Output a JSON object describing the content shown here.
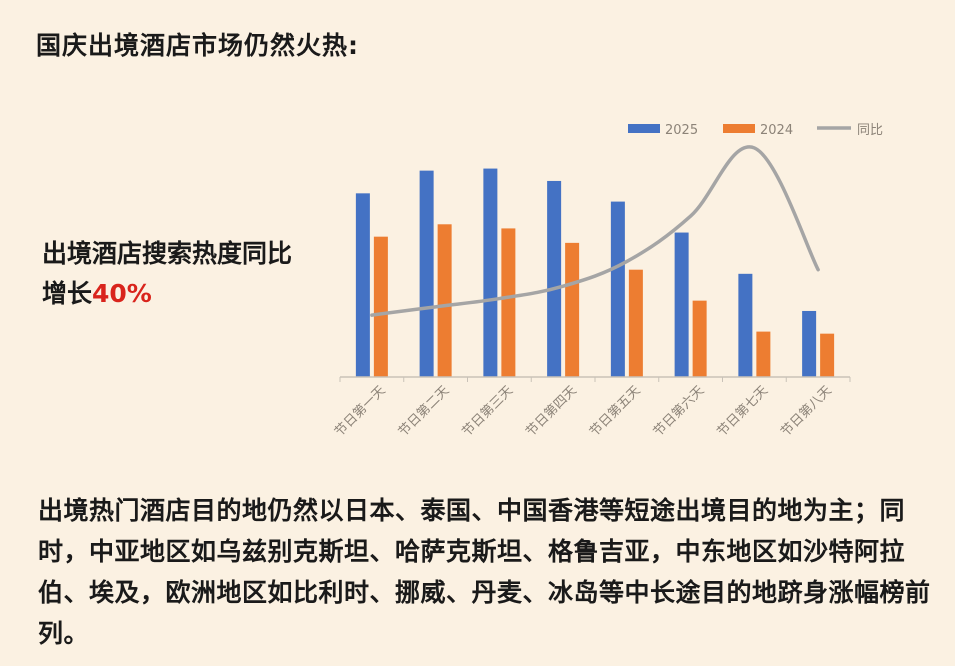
{
  "title": "国庆出境酒店市场仍然火热:",
  "side_note": {
    "text": "出境酒店搜索热度同比增长",
    "highlight": "40%"
  },
  "colors": {
    "series_2025": "#4472c4",
    "series_2024": "#ed7d31",
    "yoy_line": "#a5a5a5",
    "highlight": "#d9241c",
    "background": "#fbf1e2"
  },
  "chart_data": {
    "type": "bar",
    "categories": [
      "节日第一天",
      "节日第二天",
      "节日第三天",
      "节日第四天",
      "节日第五天",
      "节日第六天",
      "节日第七天",
      "节日第八天"
    ],
    "series": [
      {
        "name": "2025",
        "type": "bar",
        "values": [
          89,
          100,
          101,
          95,
          85,
          70,
          50,
          32
        ]
      },
      {
        "name": "2024",
        "type": "bar",
        "values": [
          68,
          74,
          72,
          65,
          52,
          37,
          22,
          21
        ]
      },
      {
        "name": "同比",
        "type": "line",
        "values": [
          30,
          34,
          38,
          44,
          56,
          78,
          111,
          52
        ]
      }
    ],
    "ylim": [
      0,
      110
    ],
    "legend_position": "top-right",
    "grid": false,
    "axis_labels_shown": false
  },
  "paragraph": "出境热门酒店目的地仍然以日本、泰国、中国香港等短途出境目的地为主；同时，中亚地区如乌兹别克斯坦、哈萨克斯坦、格鲁吉亚，中东地区如沙特阿拉伯、埃及，欧洲地区如比利时、挪威、丹麦、冰岛等中长途目的地跻身涨幅榜前列。"
}
